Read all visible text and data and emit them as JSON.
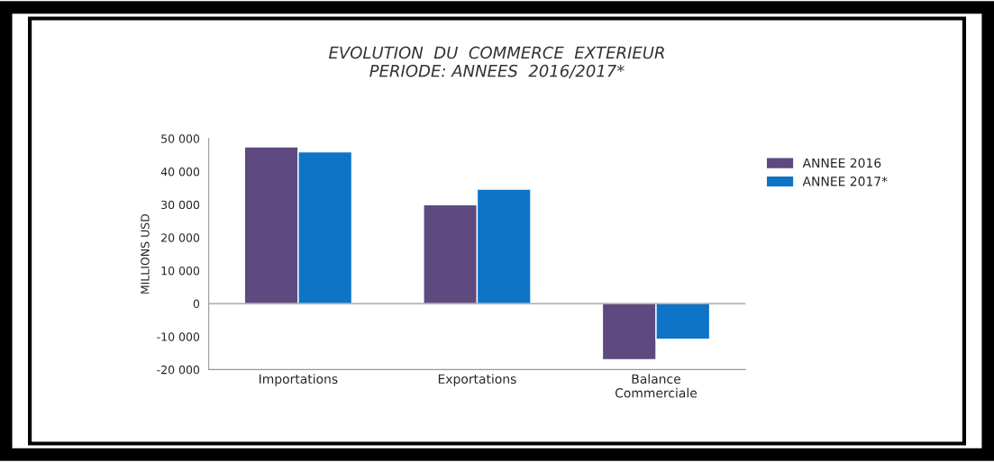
{
  "chart_data": {
    "type": "bar",
    "title": "EVOLUTION  DU  COMMERCE  EXTERIEUR\nPERIODE: ANNEES  2016/2017*",
    "ylabel": "MILLIONS USD",
    "categories": [
      "Importations",
      "Exportations",
      "Balance\nCommerciale"
    ],
    "series": [
      {
        "name": "ANNEE 2016",
        "color": "#5e4a80",
        "values": [
          47500,
          30000,
          -17000
        ]
      },
      {
        "name": "ANNEE 2017*",
        "color": "#0e74c8",
        "values": [
          46000,
          34700,
          -10800
        ]
      }
    ],
    "ylim": [
      -20000,
      50000
    ],
    "yticks": [
      {
        "value": -20000,
        "label": "-20 000"
      },
      {
        "value": -10000,
        "label": "-10 000"
      },
      0,
      {
        "value": 10000,
        "label": "10 000"
      },
      {
        "value": 20000,
        "label": "20 000"
      },
      {
        "value": 30000,
        "label": "30 000"
      },
      {
        "value": 40000,
        "label": "40 000"
      },
      {
        "value": 50000,
        "label": "50 000"
      }
    ],
    "ref_lines": [
      {
        "axis": "y",
        "value": 0,
        "color": "#999999"
      }
    ],
    "legend": "right",
    "grid": false
  }
}
